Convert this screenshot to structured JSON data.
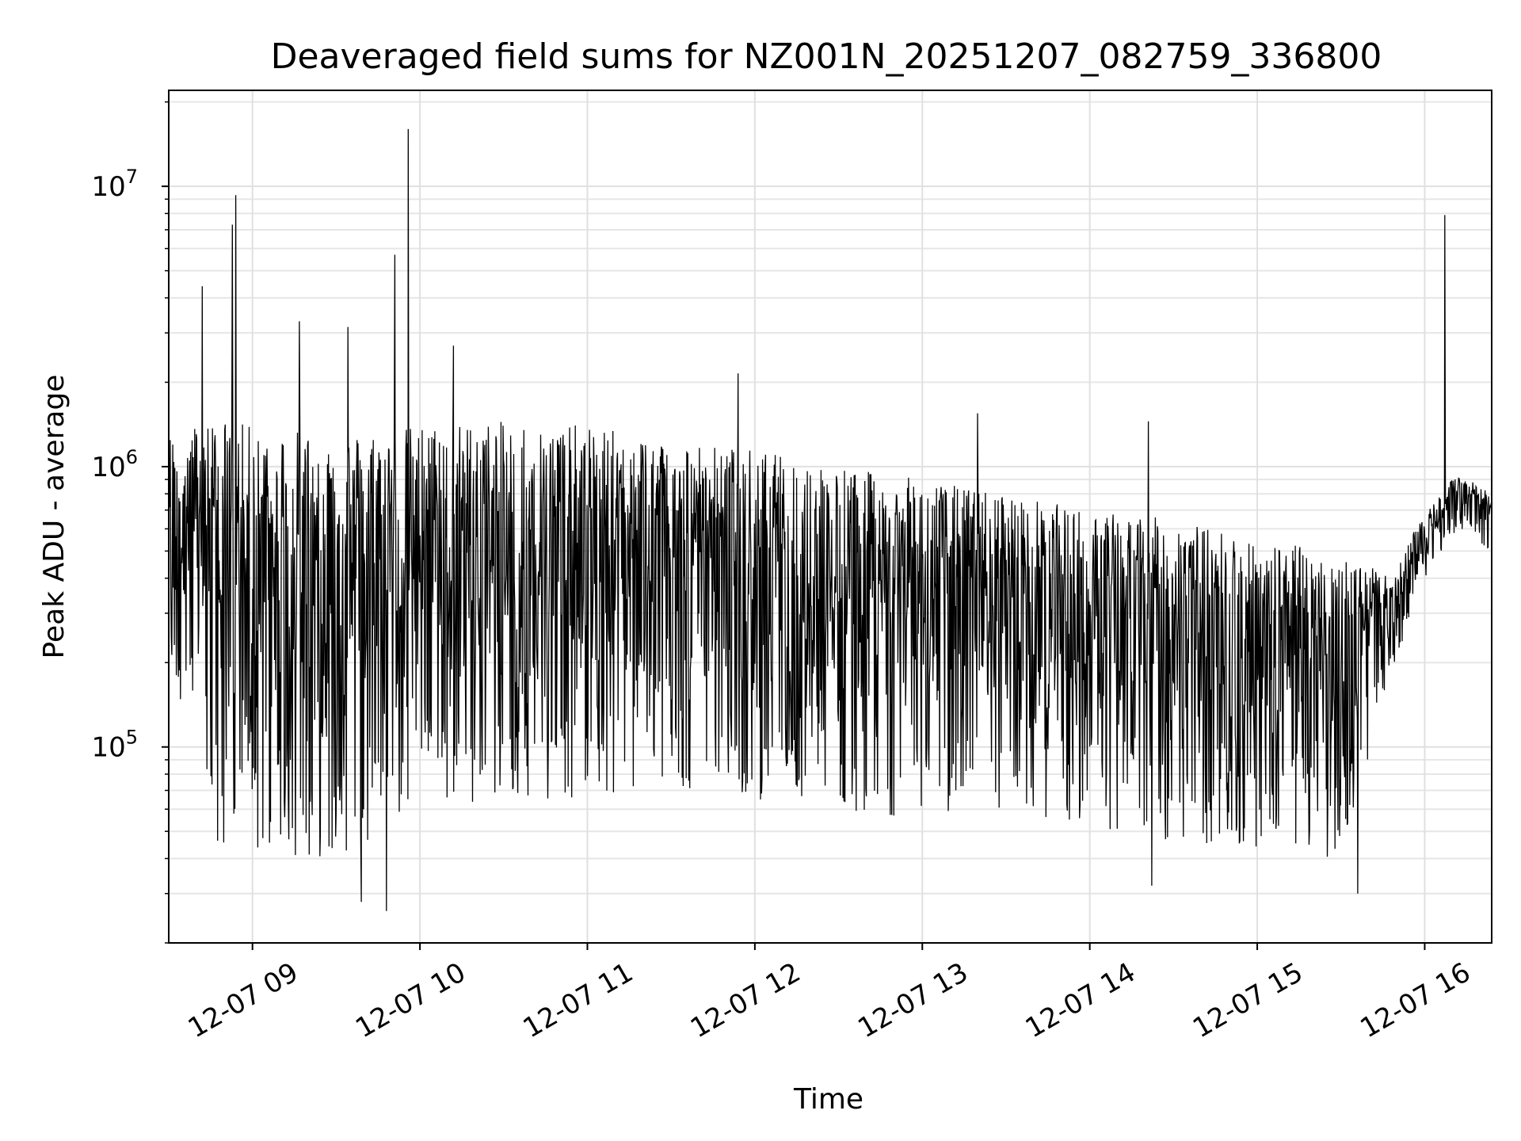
{
  "chart_data": {
    "type": "line",
    "title": "Deaveraged field sums for NZ001N_20251207_082759_336800",
    "xlabel": "Time",
    "ylabel": "Peak ADU - average",
    "yscale": "log",
    "ylim": [
      20000,
      22000000
    ],
    "xlim_hours": [
      8.5,
      16.4
    ],
    "grid": true,
    "line_color": "#000000",
    "x_ticks": [
      {
        "hour": 9,
        "label": "12-07 09"
      },
      {
        "hour": 10,
        "label": "12-07 10"
      },
      {
        "hour": 11,
        "label": "12-07 11"
      },
      {
        "hour": 12,
        "label": "12-07 12"
      },
      {
        "hour": 13,
        "label": "12-07 13"
      },
      {
        "hour": 14,
        "label": "12-07 14"
      },
      {
        "hour": 15,
        "label": "12-07 15"
      },
      {
        "hour": 16,
        "label": "12-07 16"
      }
    ],
    "y_ticks": [
      {
        "value": 100000,
        "base": "10",
        "exp": "5"
      },
      {
        "value": 1000000,
        "base": "10",
        "exp": "6"
      },
      {
        "value": 10000000,
        "base": "10",
        "exp": "7"
      }
    ],
    "series": [
      {
        "name": "field sums",
        "upper_envelope": [
          [
            8.5,
            1300000
          ],
          [
            8.75,
            1500000
          ],
          [
            9.0,
            1400000
          ],
          [
            9.5,
            1300000
          ],
          [
            10.0,
            1400000
          ],
          [
            10.5,
            1450000
          ],
          [
            11.0,
            1400000
          ],
          [
            11.5,
            1250000
          ],
          [
            12.0,
            1150000
          ],
          [
            12.5,
            1000000
          ],
          [
            13.0,
            900000
          ],
          [
            13.5,
            800000
          ],
          [
            14.0,
            700000
          ],
          [
            14.5,
            650000
          ],
          [
            15.0,
            550000
          ],
          [
            15.5,
            500000
          ],
          [
            15.8,
            400000
          ],
          [
            16.0,
            700000
          ],
          [
            16.2,
            950000
          ],
          [
            16.4,
            800000
          ]
        ],
        "lower_envelope": [
          [
            8.5,
            200000
          ],
          [
            8.75,
            45000
          ],
          [
            9.0,
            40000
          ],
          [
            9.5,
            40000
          ],
          [
            10.0,
            60000
          ],
          [
            10.5,
            65000
          ],
          [
            11.0,
            65000
          ],
          [
            11.5,
            70000
          ],
          [
            12.0,
            65000
          ],
          [
            12.5,
            60000
          ],
          [
            13.0,
            55000
          ],
          [
            13.5,
            55000
          ],
          [
            14.0,
            50000
          ],
          [
            14.5,
            45000
          ],
          [
            15.0,
            42000
          ],
          [
            15.5,
            40000
          ],
          [
            15.8,
            180000
          ],
          [
            16.0,
            400000
          ],
          [
            16.2,
            600000
          ],
          [
            16.4,
            500000
          ]
        ],
        "spikes": [
          {
            "hour": 8.9,
            "value": 9300000
          },
          {
            "hour": 8.88,
            "value": 7300000
          },
          {
            "hour": 8.7,
            "value": 4400000
          },
          {
            "hour": 9.28,
            "value": 3300000
          },
          {
            "hour": 9.57,
            "value": 3150000
          },
          {
            "hour": 9.85,
            "value": 5700000
          },
          {
            "hour": 9.93,
            "value": 16000000
          },
          {
            "hour": 10.2,
            "value": 2700000
          },
          {
            "hour": 11.9,
            "value": 2150000
          },
          {
            "hour": 13.33,
            "value": 1550000
          },
          {
            "hour": 14.35,
            "value": 1450000
          },
          {
            "hour": 16.12,
            "value": 7900000
          }
        ],
        "dips": [
          {
            "hour": 9.8,
            "value": 26000
          },
          {
            "hour": 9.65,
            "value": 28000
          },
          {
            "hour": 15.6,
            "value": 30000
          },
          {
            "hour": 14.37,
            "value": 32000
          }
        ]
      }
    ]
  }
}
